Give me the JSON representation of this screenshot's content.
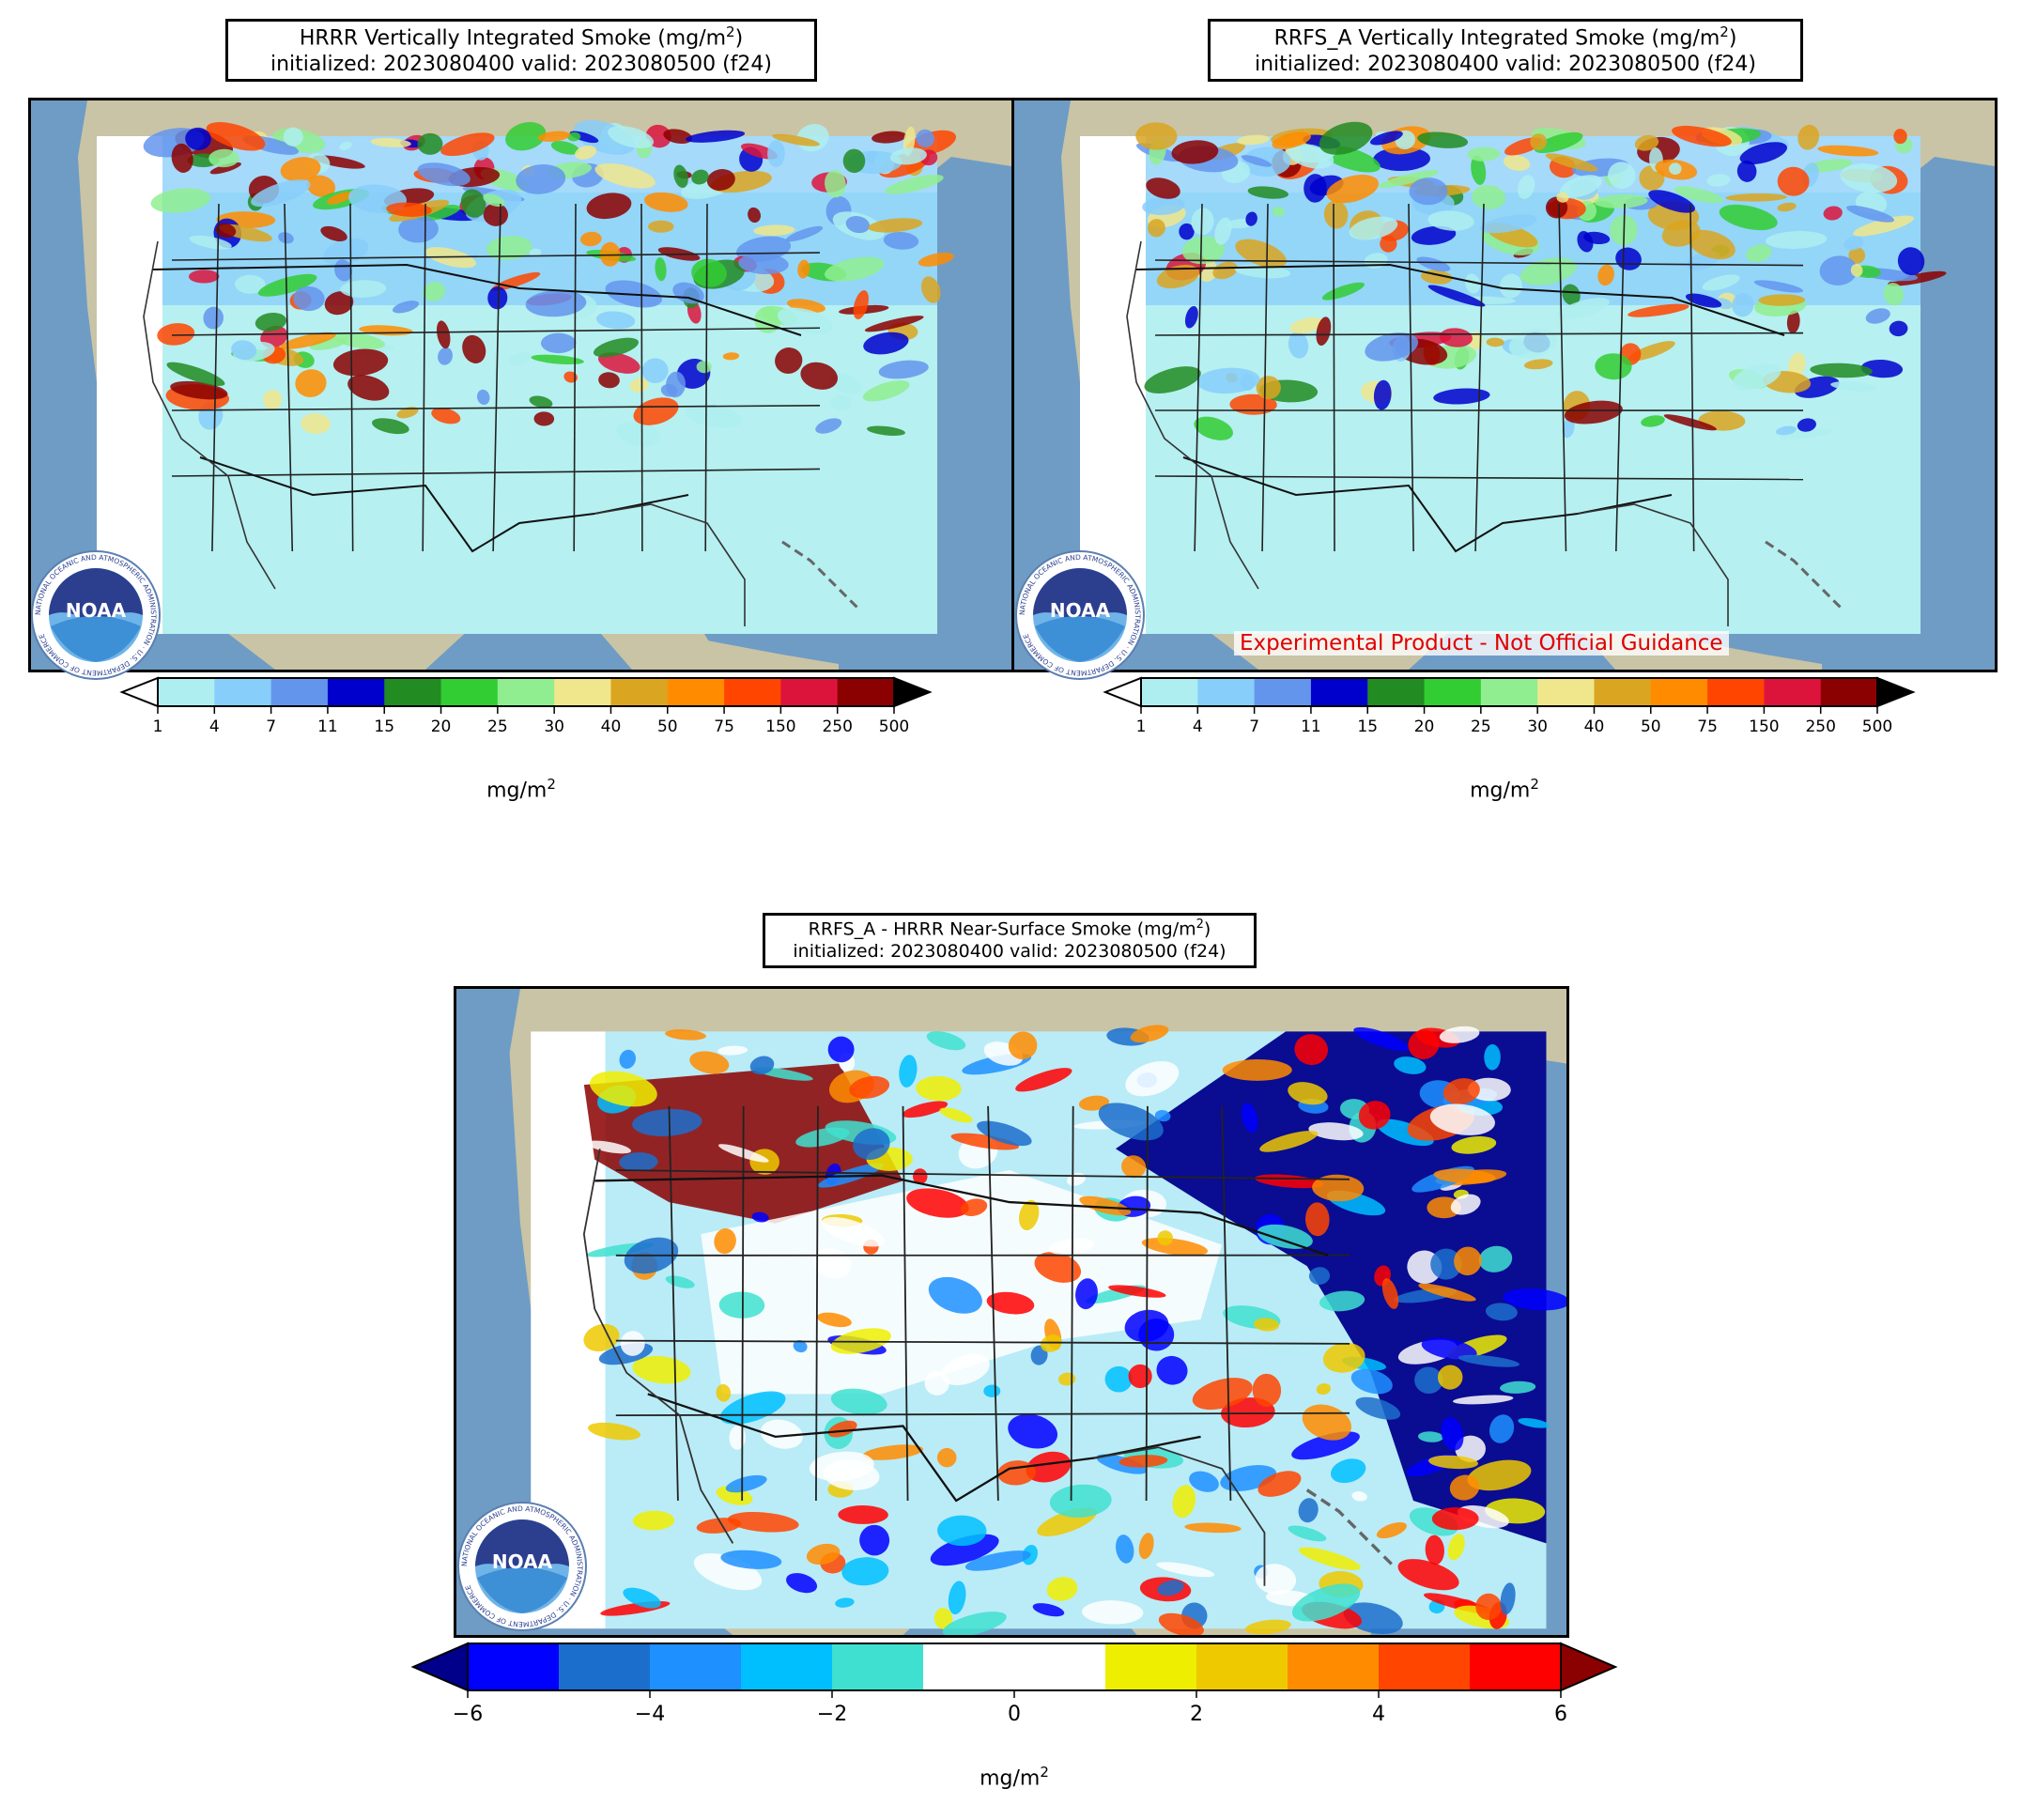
{
  "panels": [
    {
      "title_main": "HRRR Vertically Integrated Smoke (mg/m",
      "title_unit_sup": "2",
      "title_close": ")",
      "subtitle": "initialized: 2023080400 valid: 2023080500 (f24)",
      "field": "hrrr"
    },
    {
      "title_main": "RRFS_A Vertically Integrated Smoke (mg/m",
      "title_unit_sup": "2",
      "title_close": ")",
      "subtitle": "initialized: 2023080400 valid: 2023080500 (f24)",
      "field": "rrfs",
      "disclaimer": "Experimental Product - Not Official Guidance"
    },
    {
      "title_main": "RRFS_A - HRRR Near-Surface Smoke (mg/m",
      "title_unit_sup": "2",
      "title_close": ")",
      "subtitle": "initialized: 2023080400 valid: 2023080500 (f24)",
      "field": "diff"
    }
  ],
  "smoke_colorbar": {
    "ticks": [
      "1",
      "4",
      "7",
      "11",
      "15",
      "20",
      "25",
      "30",
      "40",
      "50",
      "75",
      "150",
      "250",
      "500"
    ],
    "colors": [
      "#aeeef0",
      "#87cefa",
      "#6495ed",
      "#0000cd",
      "#228b22",
      "#32cd32",
      "#90ee90",
      "#f0e68c",
      "#daa520",
      "#ff8c00",
      "#ff4500",
      "#dc143c",
      "#8b0000"
    ],
    "under_color": "#ffffff",
    "over_color": "#000000",
    "unit": "mg/m",
    "unit_sup": "2"
  },
  "diff_colorbar": {
    "ticks": [
      "−6",
      "−4",
      "−2",
      "0",
      "2",
      "4",
      "6"
    ],
    "colors": [
      "#0000ff",
      "#1c6ecc",
      "#1e90ff",
      "#00bfff",
      "#40e0d0",
      "#ffffff",
      "#ffffff",
      "#eeee00",
      "#eec900",
      "#ff8c00",
      "#ff4500",
      "#ff0000"
    ],
    "under_color": "#00008b",
    "over_color": "#8b0000",
    "unit": "mg/m",
    "unit_sup": "2"
  },
  "logo_text": "NOAA",
  "logo_ring_text": "NATIONAL OCEANIC AND ATMOSPHERIC ADMINISTRATION · U.S. DEPARTMENT OF COMMERCE",
  "colors": {
    "ocean": "#6f9cc4",
    "land": "#c9c4a6",
    "map_border": "#000000",
    "disclaimer": "#e00000"
  }
}
